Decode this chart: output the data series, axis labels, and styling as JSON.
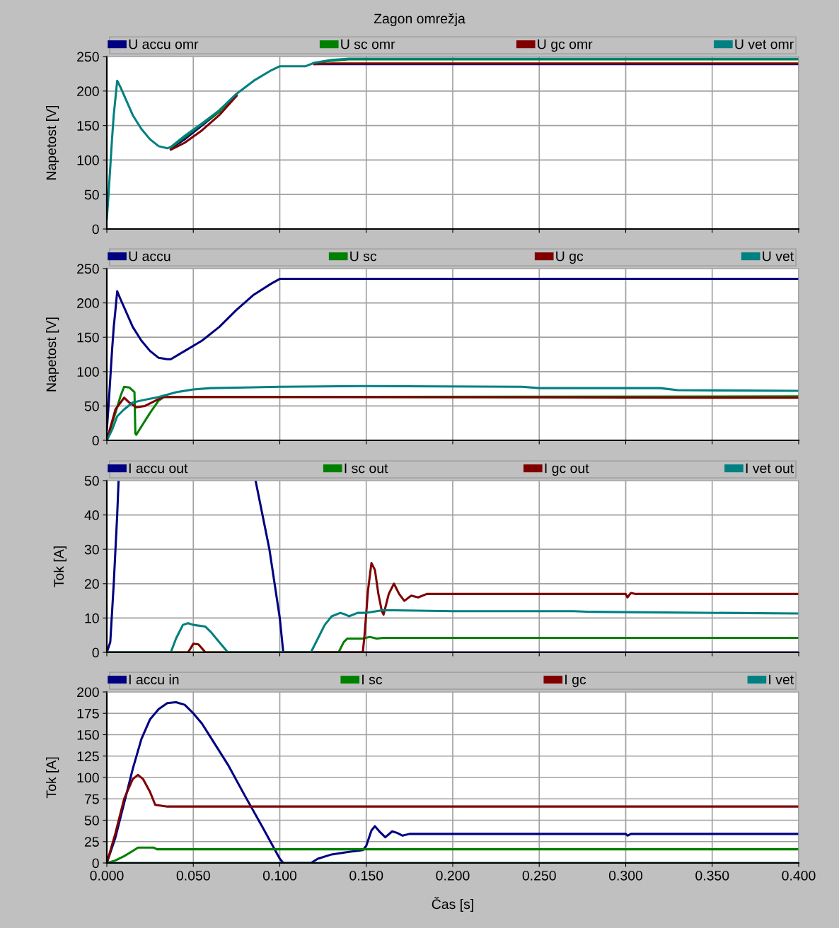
{
  "chart_data": [
    {
      "type": "line",
      "title": "Zagon omrežja",
      "ylabel": "Napetost [V]",
      "xlim": [
        0,
        0.4
      ],
      "xticks": [
        0,
        0.05,
        0.1,
        0.15,
        0.2,
        0.25,
        0.3,
        0.35,
        0.4
      ],
      "ylim": [
        0,
        250
      ],
      "yticks": [
        0,
        50,
        100,
        150,
        200,
        250
      ],
      "grid": true,
      "legend": "top",
      "tick_labels": "y",
      "line_style": "solid",
      "marker": "none",
      "series": [
        {
          "name": "U accu omr",
          "color": "#000080",
          "x": [
            0.037,
            0.045,
            0.055,
            0.065,
            0.1,
            0.12,
            0.13,
            0.4
          ],
          "values": [
            117,
            130,
            150,
            170,
            null,
            239,
            239,
            239
          ]
        },
        {
          "name": "U sc omr",
          "color": "#008000",
          "x": [
            0.037,
            0.045,
            0.055,
            0.065,
            0.075,
            0.1,
            0.12,
            0.13,
            0.14,
            0.4
          ],
          "values": [
            118,
            133,
            152,
            170,
            195,
            null,
            240,
            244,
            246,
            246
          ]
        },
        {
          "name": "U gc omr",
          "color": "#800000",
          "x": [
            0.037,
            0.045,
            0.055,
            0.065,
            0.075,
            0.1,
            0.12,
            0.13,
            0.4
          ],
          "values": [
            115,
            125,
            143,
            165,
            193,
            null,
            239,
            240,
            240
          ]
        },
        {
          "name": "U vet omr",
          "color": "#008080",
          "x": [
            0,
            0.001,
            0.002,
            0.003,
            0.004,
            0.005,
            0.006,
            0.008,
            0.015,
            0.02,
            0.025,
            0.03,
            0.035,
            0.037,
            0.045,
            0.055,
            0.065,
            0.075,
            0.085,
            0.095,
            0.1,
            0.115,
            0.12,
            0.13,
            0.14,
            0.4
          ],
          "values": [
            15,
            50,
            90,
            130,
            165,
            190,
            215,
            205,
            165,
            145,
            130,
            120,
            117,
            119,
            135,
            153,
            172,
            196,
            215,
            230,
            236,
            236,
            241,
            245,
            247,
            247
          ]
        }
      ]
    },
    {
      "type": "line",
      "ylabel": "Napetost [V]",
      "xlim": [
        0,
        0.4
      ],
      "xticks": [
        0,
        0.05,
        0.1,
        0.15,
        0.2,
        0.25,
        0.3,
        0.35,
        0.4
      ],
      "ylim": [
        0,
        250
      ],
      "yticks": [
        0,
        50,
        100,
        150,
        200,
        250
      ],
      "grid": true,
      "legend": "top",
      "tick_labels": "y",
      "line_style": "solid",
      "marker": "none",
      "series": [
        {
          "name": "U accu",
          "color": "#000080",
          "x": [
            0,
            0.001,
            0.002,
            0.003,
            0.004,
            0.005,
            0.006,
            0.008,
            0.015,
            0.02,
            0.025,
            0.03,
            0.035,
            0.037,
            0.045,
            0.055,
            0.065,
            0.075,
            0.085,
            0.095,
            0.1,
            0.4
          ],
          "values": [
            15,
            50,
            90,
            130,
            165,
            190,
            217,
            205,
            165,
            145,
            130,
            120,
            118,
            118,
            130,
            145,
            165,
            190,
            212,
            228,
            235,
            235
          ]
        },
        {
          "name": "U sc",
          "color": "#008000",
          "x": [
            0,
            0.005,
            0.008,
            0.01,
            0.013,
            0.016,
            0.0165,
            0.017,
            0.02,
            0.025,
            0.03,
            0.033,
            0.4
          ],
          "values": [
            0,
            40,
            65,
            78,
            77,
            70,
            10,
            8,
            20,
            40,
            58,
            63,
            64
          ]
        },
        {
          "name": "U gc",
          "color": "#800000",
          "x": [
            0,
            0.005,
            0.01,
            0.013,
            0.017,
            0.022,
            0.03,
            0.033,
            0.4
          ],
          "values": [
            0,
            45,
            62,
            55,
            48,
            50,
            60,
            63,
            62
          ]
        },
        {
          "name": "U vet",
          "color": "#008080",
          "x": [
            0,
            0.003,
            0.006,
            0.01,
            0.015,
            0.02,
            0.03,
            0.04,
            0.05,
            0.06,
            0.08,
            0.1,
            0.15,
            0.24,
            0.25,
            0.32,
            0.33,
            0.4
          ],
          "values": [
            0,
            15,
            35,
            45,
            55,
            58,
            63,
            70,
            74,
            76,
            77,
            78,
            79,
            78,
            76,
            76,
            73,
            72
          ]
        }
      ]
    },
    {
      "type": "line",
      "ylabel": "Tok [A]",
      "xlim": [
        0,
        0.4
      ],
      "xticks": [
        0,
        0.05,
        0.1,
        0.15,
        0.2,
        0.25,
        0.3,
        0.35,
        0.4
      ],
      "ylim": [
        0,
        50
      ],
      "yticks": [
        0,
        10,
        20,
        30,
        40,
        50
      ],
      "grid": true,
      "legend": "top",
      "tick_labels": "y",
      "line_style": "solid",
      "marker": "none",
      "series": [
        {
          "name": "I accu out",
          "color": "#000080",
          "x": [
            0,
            0.002,
            0.004,
            0.006,
            0.0068,
            0.05,
            0.086,
            0.09,
            0.094,
            0.097,
            0.1,
            0.102,
            0.4
          ],
          "values": [
            0,
            3,
            20,
            40,
            50,
            null,
            50,
            40,
            30,
            20,
            10,
            0,
            0
          ]
        },
        {
          "name": "I sc out",
          "color": "#008000",
          "x": [
            0,
            0.134,
            0.137,
            0.139,
            0.148,
            0.152,
            0.156,
            0.16,
            0.4
          ],
          "values": [
            0,
            0,
            3,
            4,
            4,
            4.5,
            4,
            4.2,
            4.2
          ]
        },
        {
          "name": "I gc out",
          "color": "#800000",
          "x": [
            0,
            0.047,
            0.05,
            0.053,
            0.057,
            0.148,
            0.149,
            0.151,
            0.153,
            0.155,
            0.157,
            0.159,
            0.16,
            0.163,
            0.166,
            0.169,
            0.172,
            0.176,
            0.18,
            0.185,
            0.3,
            0.301,
            0.303,
            0.306,
            0.4
          ],
          "values": [
            0,
            0,
            2.5,
            2.3,
            0,
            0,
            5,
            18,
            26,
            24,
            17,
            12,
            11,
            17,
            20,
            17,
            15,
            16.5,
            16,
            17,
            17,
            16,
            17.3,
            17,
            17
          ]
        },
        {
          "name": "I vet out",
          "color": "#008080",
          "x": [
            0,
            0.037,
            0.04,
            0.044,
            0.047,
            0.05,
            0.057,
            0.06,
            0.065,
            0.07,
            0.118,
            0.122,
            0.126,
            0.13,
            0.135,
            0.138,
            0.14,
            0.145,
            0.15,
            0.16,
            0.2,
            0.27,
            0.28,
            0.4
          ],
          "values": [
            0,
            0,
            4,
            8,
            8.5,
            8,
            7.5,
            6,
            3,
            0,
            0,
            4,
            8,
            10.5,
            11.5,
            11,
            10.5,
            11.5,
            11.5,
            12.3,
            12,
            12,
            11.8,
            11.3
          ]
        }
      ]
    },
    {
      "type": "line",
      "ylabel": "Tok [A]",
      "xlabel": "Čas [s]",
      "xlim": [
        0,
        0.4
      ],
      "xticks": [
        {
          "value": 0,
          "label": "0.000"
        },
        {
          "value": 0.05,
          "label": "0.050"
        },
        {
          "value": 0.1,
          "label": "0.100"
        },
        {
          "value": 0.15,
          "label": "0.150"
        },
        {
          "value": 0.2,
          "label": "0.200"
        },
        {
          "value": 0.25,
          "label": "0.250"
        },
        {
          "value": 0.3,
          "label": "0.300"
        },
        {
          "value": 0.35,
          "label": "0.350"
        },
        {
          "value": 0.4,
          "label": "0.400"
        }
      ],
      "ylim": [
        0,
        200
      ],
      "yticks": [
        0,
        25,
        50,
        75,
        100,
        125,
        150,
        175,
        200
      ],
      "grid": true,
      "legend": "top",
      "line_style": "solid",
      "marker": "none",
      "series": [
        {
          "name": "I accu in",
          "color": "#000080",
          "x": [
            0,
            0.005,
            0.01,
            0.015,
            0.02,
            0.025,
            0.03,
            0.035,
            0.04,
            0.045,
            0.05,
            0.055,
            0.06,
            0.07,
            0.08,
            0.09,
            0.1,
            0.102,
            0.118,
            0.122,
            0.13,
            0.14,
            0.148,
            0.15,
            0.153,
            0.155,
            0.158,
            0.161,
            0.165,
            0.168,
            0.171,
            0.175,
            0.18,
            0.3,
            0.301,
            0.303,
            0.4
          ],
          "values": [
            0,
            30,
            70,
            110,
            145,
            168,
            180,
            187,
            188,
            185,
            175,
            163,
            147,
            115,
            78,
            42,
            5,
            0,
            0,
            5,
            10,
            13,
            15,
            20,
            38,
            43,
            36,
            30,
            37,
            35,
            32,
            34,
            34,
            34,
            32,
            34,
            34
          ]
        },
        {
          "name": "I sc",
          "color": "#008000",
          "x": [
            0,
            0.005,
            0.01,
            0.015,
            0.018,
            0.027,
            0.029,
            0.4
          ],
          "values": [
            0,
            3,
            8,
            14,
            18,
            18,
            16,
            16
          ]
        },
        {
          "name": "I gc",
          "color": "#800000",
          "x": [
            0,
            0.005,
            0.01,
            0.015,
            0.018,
            0.021,
            0.025,
            0.028,
            0.035,
            0.4
          ],
          "values": [
            0,
            35,
            75,
            98,
            103,
            98,
            83,
            68,
            66,
            66
          ]
        },
        {
          "name": "I vet",
          "color": "#008080",
          "x": [
            0,
            0.4
          ],
          "values": [
            0,
            0
          ]
        }
      ]
    }
  ]
}
